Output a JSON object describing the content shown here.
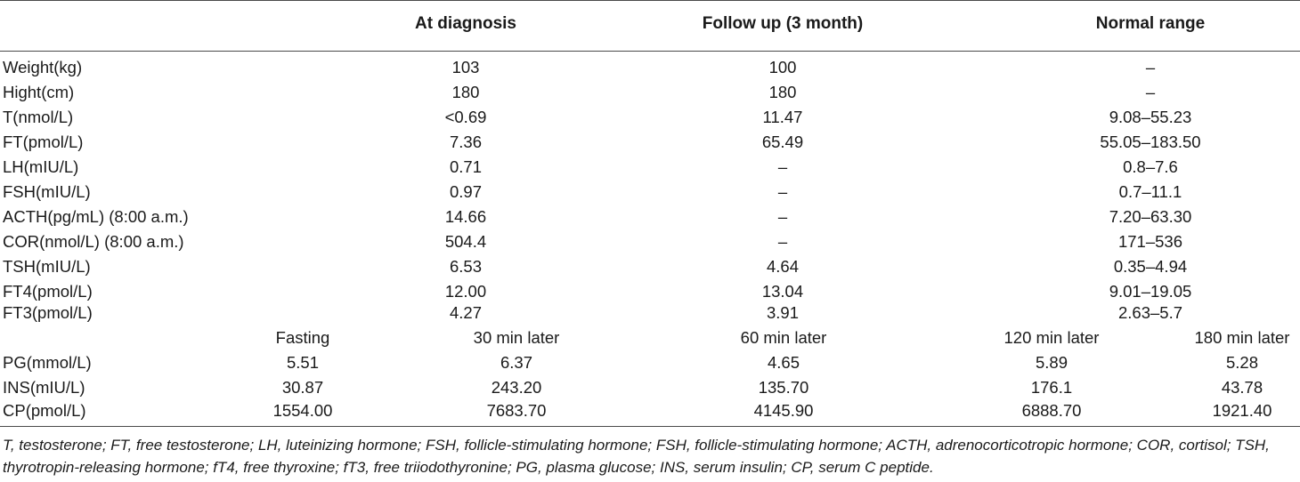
{
  "table": {
    "headers": [
      "",
      "At diagnosis",
      "Follow up (3 month)",
      "Normal range"
    ],
    "rows": [
      {
        "label": "Weight(kg)",
        "at_diagnosis": "103",
        "follow_up": "100",
        "normal_range": "–"
      },
      {
        "label": "Hight(cm)",
        "at_diagnosis": "180",
        "follow_up": "180",
        "normal_range": "–"
      },
      {
        "label": "T(nmol/L)",
        "at_diagnosis": "<0.69",
        "follow_up": "11.47",
        "normal_range": "9.08–55.23"
      },
      {
        "label": "FT(pmol/L)",
        "at_diagnosis": "7.36",
        "follow_up": "65.49",
        "normal_range": "55.05–183.50"
      },
      {
        "label": "LH(mIU/L)",
        "at_diagnosis": "0.71",
        "follow_up": "–",
        "normal_range": "0.8–7.6"
      },
      {
        "label": "FSH(mIU/L)",
        "at_diagnosis": "0.97",
        "follow_up": "–",
        "normal_range": "0.7–11.1"
      },
      {
        "label": "ACTH(pg/mL) (8:00 a.m.)",
        "at_diagnosis": "14.66",
        "follow_up": "–",
        "normal_range": "7.20–63.30"
      },
      {
        "label": "COR(nmol/L) (8:00 a.m.)",
        "at_diagnosis": "504.4",
        "follow_up": "–",
        "normal_range": "171–536"
      },
      {
        "label": "TSH(mIU/L)",
        "at_diagnosis": "6.53",
        "follow_up": "4.64",
        "normal_range": "0.35–4.94"
      },
      {
        "label": "FT4(pmol/L)",
        "at_diagnosis": "12.00",
        "follow_up": "13.04",
        "normal_range": "9.01–19.05"
      },
      {
        "label": "FT3(pmol/L)",
        "at_diagnosis": "4.27",
        "follow_up": "3.91",
        "normal_range": "2.63–5.7"
      }
    ],
    "ogtt_headers": [
      "Fasting",
      "30 min later",
      "60 min later",
      "120 min later",
      "180 min later"
    ],
    "ogtt_rows": [
      {
        "label": "PG(mmol/L)",
        "values": [
          "5.51",
          "6.37",
          "4.65",
          "5.89",
          "5.28"
        ]
      },
      {
        "label": "INS(mIU/L)",
        "values": [
          "30.87",
          "243.20",
          "135.70",
          "176.1",
          "43.78"
        ]
      },
      {
        "label": "CP(pmol/L)",
        "values": [
          "1554.00",
          "7683.70",
          "4145.90",
          "6888.70",
          "1921.40"
        ]
      }
    ],
    "footnote": "T, testosterone; FT, free testosterone; LH, luteinizing hormone; FSH, follicle-stimulating hormone; FSH, follicle-stimulating hormone; ACTH, adrenocorticotropic hormone; COR, cortisol; TSH, thyrotropin-releasing hormone; fT4, free thyroxine; fT3, free triiodothyronine; PG, plasma glucose; INS, serum insulin; CP, serum C peptide."
  }
}
